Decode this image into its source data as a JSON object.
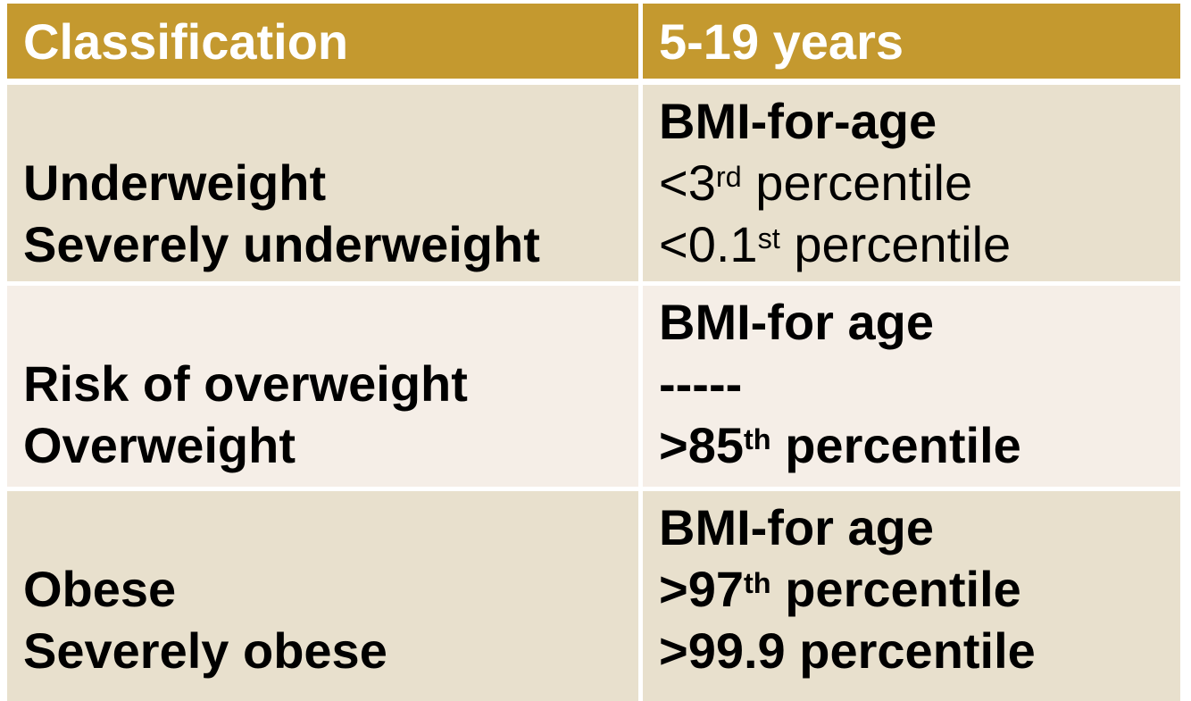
{
  "colors": {
    "header_bg": "#C4992F",
    "header_text": "#FFFFFF",
    "row_tan_bg": "#E8E0CD",
    "row_light_bg": "#F5EEE7",
    "body_text": "#000000",
    "gutter": "#FFFFFF"
  },
  "table": {
    "header": {
      "classification": "Classification",
      "age_group": "5-19 years"
    },
    "rows": [
      {
        "classification": [
          "Underweight",
          "Severely underweight"
        ],
        "values": [
          {
            "pre": "BMI-for-age",
            "sup": "",
            "post": ""
          },
          {
            "pre": "<3",
            "sup": "rd",
            "post": " percentile"
          },
          {
            "pre": "<0.1",
            "sup": "st",
            "post": " percentile"
          }
        ]
      },
      {
        "classification": [
          "Risk of overweight",
          "Overweight"
        ],
        "values": [
          {
            "pre": "BMI-for age",
            "sup": "",
            "post": ""
          },
          {
            "pre": "-----",
            "sup": "",
            "post": ""
          },
          {
            "pre": ">85",
            "sup": "th",
            "post": " percentile"
          }
        ]
      },
      {
        "classification": [
          "Obese",
          "Severely obese"
        ],
        "values": [
          {
            "pre": "BMI-for age",
            "sup": "",
            "post": ""
          },
          {
            "pre": ">97",
            "sup": "th",
            "post": " percentile"
          },
          {
            "pre": ">99.9",
            "sup": "",
            "post": " percentile"
          }
        ]
      }
    ]
  },
  "chart_data": {
    "type": "table",
    "columns": [
      "Classification",
      "5-19 years"
    ],
    "rows": [
      [
        "Underweight",
        "BMI-for-age <3rd percentile"
      ],
      [
        "Severely underweight",
        "BMI-for-age <0.1st percentile"
      ],
      [
        "Risk of overweight",
        "BMI-for age -----"
      ],
      [
        "Overweight",
        "BMI-for age >85th percentile"
      ],
      [
        "Obese",
        "BMI-for age >97th percentile"
      ],
      [
        "Severely obese",
        "BMI-for age >99.9 percentile"
      ]
    ],
    "title": "",
    "legend": false,
    "grid": "white gutters between cells"
  }
}
